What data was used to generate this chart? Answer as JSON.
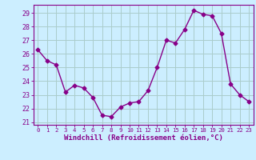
{
  "x": [
    0,
    1,
    2,
    3,
    4,
    5,
    6,
    7,
    8,
    9,
    10,
    11,
    12,
    13,
    14,
    15,
    16,
    17,
    18,
    19,
    20,
    21,
    22,
    23
  ],
  "y": [
    26.3,
    25.5,
    25.2,
    23.2,
    23.7,
    23.5,
    22.8,
    21.5,
    21.4,
    22.1,
    22.4,
    22.5,
    23.3,
    25.0,
    27.0,
    26.8,
    27.8,
    29.2,
    28.9,
    28.8,
    27.5,
    23.8,
    23.0,
    22.5
  ],
  "line_color": "#880088",
  "marker": "D",
  "marker_size": 2.5,
  "bg_color": "#cceeff",
  "grid_color": "#aacccc",
  "ylabel_ticks": [
    21,
    22,
    23,
    24,
    25,
    26,
    27,
    28,
    29
  ],
  "xlabel": "Windchill (Refroidissement éolien,°C)",
  "xlim": [
    -0.5,
    23.5
  ],
  "ylim": [
    20.8,
    29.6
  ],
  "tick_color": "#880088",
  "label_color": "#880088",
  "axis_color": "#880088",
  "xtick_fontsize": 5.2,
  "ytick_fontsize": 6.0,
  "xlabel_fontsize": 6.5
}
